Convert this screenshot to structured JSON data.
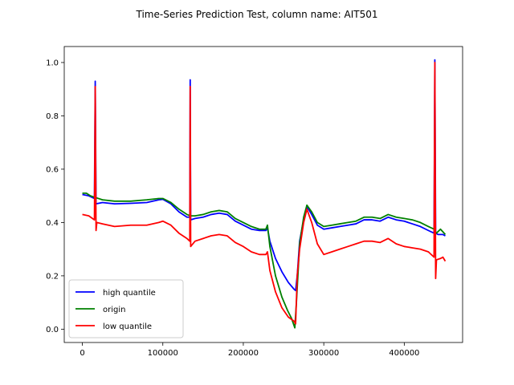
{
  "chart_data": {
    "type": "line",
    "title": "Time-Series Prediction Test, column name: AIT501",
    "xlabel": "",
    "ylabel": "",
    "xlim": [
      -22500,
      472500
    ],
    "ylim": [
      -0.05,
      1.06
    ],
    "x_ticks": [
      0,
      100000,
      200000,
      300000,
      400000
    ],
    "x_tick_labels": [
      "0",
      "100000",
      "200000",
      "300000",
      "400000"
    ],
    "y_ticks": [
      0.0,
      0.2,
      0.4,
      0.6,
      0.8,
      1.0
    ],
    "y_tick_labels": [
      "0.0",
      "0.2",
      "0.4",
      "0.6",
      "0.8",
      "1.0"
    ],
    "grid": false,
    "legend_position": "lower-left",
    "series": [
      {
        "name": "high quantile",
        "color": "#0000ff",
        "points": [
          [
            0,
            0.505
          ],
          [
            8000,
            0.5
          ],
          [
            15000,
            0.49
          ],
          [
            16000,
            0.93
          ],
          [
            17000,
            0.47
          ],
          [
            25000,
            0.475
          ],
          [
            40000,
            0.47
          ],
          [
            60000,
            0.472
          ],
          [
            80000,
            0.475
          ],
          [
            95000,
            0.485
          ],
          [
            100000,
            0.487
          ],
          [
            110000,
            0.47
          ],
          [
            120000,
            0.44
          ],
          [
            130000,
            0.42
          ],
          [
            133500,
            0.42
          ],
          [
            134000,
            0.935
          ],
          [
            134600,
            0.41
          ],
          [
            140000,
            0.415
          ],
          [
            150000,
            0.42
          ],
          [
            160000,
            0.43
          ],
          [
            170000,
            0.435
          ],
          [
            180000,
            0.43
          ],
          [
            190000,
            0.405
          ],
          [
            200000,
            0.39
          ],
          [
            210000,
            0.375
          ],
          [
            220000,
            0.37
          ],
          [
            228000,
            0.37
          ],
          [
            230000,
            0.38
          ],
          [
            233000,
            0.33
          ],
          [
            240000,
            0.265
          ],
          [
            248000,
            0.215
          ],
          [
            256000,
            0.175
          ],
          [
            263000,
            0.15
          ],
          [
            265000,
            0.145
          ],
          [
            267000,
            0.2
          ],
          [
            270000,
            0.33
          ],
          [
            275000,
            0.41
          ],
          [
            279000,
            0.46
          ],
          [
            285000,
            0.43
          ],
          [
            292000,
            0.39
          ],
          [
            300000,
            0.375
          ],
          [
            310000,
            0.38
          ],
          [
            320000,
            0.385
          ],
          [
            330000,
            0.39
          ],
          [
            340000,
            0.395
          ],
          [
            350000,
            0.41
          ],
          [
            360000,
            0.41
          ],
          [
            370000,
            0.405
          ],
          [
            380000,
            0.42
          ],
          [
            390000,
            0.41
          ],
          [
            400000,
            0.405
          ],
          [
            410000,
            0.395
          ],
          [
            420000,
            0.385
          ],
          [
            430000,
            0.37
          ],
          [
            437000,
            0.36
          ],
          [
            438000,
            1.01
          ],
          [
            439000,
            0.36
          ],
          [
            442000,
            0.355
          ],
          [
            448000,
            0.355
          ],
          [
            451000,
            0.35
          ]
        ]
      },
      {
        "name": "origin",
        "color": "#008000",
        "points": [
          [
            0,
            0.51
          ],
          [
            5000,
            0.51
          ],
          [
            10000,
            0.5
          ],
          [
            15000,
            0.495
          ],
          [
            25000,
            0.485
          ],
          [
            40000,
            0.48
          ],
          [
            60000,
            0.48
          ],
          [
            80000,
            0.485
          ],
          [
            95000,
            0.49
          ],
          [
            100000,
            0.49
          ],
          [
            110000,
            0.475
          ],
          [
            120000,
            0.45
          ],
          [
            130000,
            0.43
          ],
          [
            134000,
            0.425
          ],
          [
            140000,
            0.425
          ],
          [
            150000,
            0.43
          ],
          [
            160000,
            0.44
          ],
          [
            170000,
            0.445
          ],
          [
            180000,
            0.44
          ],
          [
            190000,
            0.415
          ],
          [
            200000,
            0.4
          ],
          [
            210000,
            0.385
          ],
          [
            220000,
            0.375
          ],
          [
            228000,
            0.375
          ],
          [
            230000,
            0.39
          ],
          [
            233000,
            0.31
          ],
          [
            240000,
            0.2
          ],
          [
            248000,
            0.12
          ],
          [
            255000,
            0.07
          ],
          [
            260000,
            0.04
          ],
          [
            264000,
            0.005
          ],
          [
            266000,
            0.1
          ],
          [
            270000,
            0.32
          ],
          [
            275000,
            0.42
          ],
          [
            279000,
            0.465
          ],
          [
            285000,
            0.44
          ],
          [
            292000,
            0.4
          ],
          [
            300000,
            0.385
          ],
          [
            310000,
            0.39
          ],
          [
            320000,
            0.395
          ],
          [
            330000,
            0.4
          ],
          [
            340000,
            0.405
          ],
          [
            350000,
            0.42
          ],
          [
            360000,
            0.42
          ],
          [
            370000,
            0.415
          ],
          [
            380000,
            0.43
          ],
          [
            390000,
            0.42
          ],
          [
            400000,
            0.415
          ],
          [
            410000,
            0.41
          ],
          [
            420000,
            0.4
          ],
          [
            430000,
            0.385
          ],
          [
            437000,
            0.375
          ],
          [
            440000,
            0.36
          ],
          [
            445000,
            0.375
          ],
          [
            448000,
            0.365
          ],
          [
            451000,
            0.355
          ]
        ]
      },
      {
        "name": "low quantile",
        "color": "#ff0000",
        "points": [
          [
            0,
            0.43
          ],
          [
            8000,
            0.425
          ],
          [
            15000,
            0.41
          ],
          [
            16000,
            0.91
          ],
          [
            17000,
            0.37
          ],
          [
            18000,
            0.4
          ],
          [
            25000,
            0.395
          ],
          [
            40000,
            0.385
          ],
          [
            60000,
            0.39
          ],
          [
            80000,
            0.39
          ],
          [
            95000,
            0.4
          ],
          [
            100000,
            0.405
          ],
          [
            110000,
            0.39
          ],
          [
            120000,
            0.36
          ],
          [
            130000,
            0.34
          ],
          [
            133500,
            0.33
          ],
          [
            134000,
            0.91
          ],
          [
            134600,
            0.31
          ],
          [
            140000,
            0.33
          ],
          [
            150000,
            0.34
          ],
          [
            160000,
            0.35
          ],
          [
            170000,
            0.355
          ],
          [
            180000,
            0.35
          ],
          [
            190000,
            0.325
          ],
          [
            200000,
            0.31
          ],
          [
            210000,
            0.29
          ],
          [
            220000,
            0.28
          ],
          [
            228000,
            0.28
          ],
          [
            230000,
            0.29
          ],
          [
            233000,
            0.22
          ],
          [
            240000,
            0.14
          ],
          [
            248000,
            0.08
          ],
          [
            256000,
            0.045
          ],
          [
            263000,
            0.03
          ],
          [
            265000,
            0.02
          ],
          [
            267000,
            0.2
          ],
          [
            270000,
            0.3
          ],
          [
            275000,
            0.4
          ],
          [
            279000,
            0.45
          ],
          [
            285000,
            0.4
          ],
          [
            292000,
            0.32
          ],
          [
            300000,
            0.28
          ],
          [
            310000,
            0.29
          ],
          [
            320000,
            0.3
          ],
          [
            330000,
            0.31
          ],
          [
            340000,
            0.32
          ],
          [
            350000,
            0.33
          ],
          [
            360000,
            0.33
          ],
          [
            370000,
            0.325
          ],
          [
            380000,
            0.34
          ],
          [
            390000,
            0.32
          ],
          [
            400000,
            0.31
          ],
          [
            410000,
            0.305
          ],
          [
            420000,
            0.3
          ],
          [
            430000,
            0.29
          ],
          [
            437000,
            0.27
          ],
          [
            438000,
            1.0
          ],
          [
            439000,
            0.19
          ],
          [
            440000,
            0.26
          ],
          [
            445000,
            0.265
          ],
          [
            448000,
            0.27
          ],
          [
            451000,
            0.255
          ]
        ]
      }
    ]
  }
}
